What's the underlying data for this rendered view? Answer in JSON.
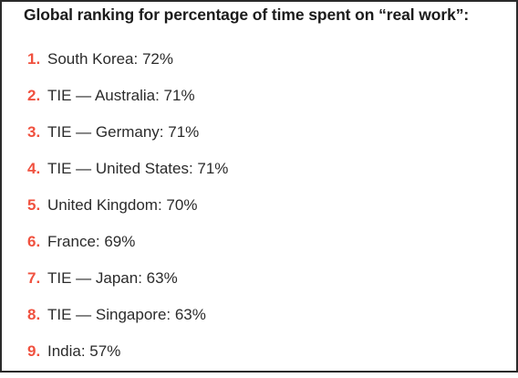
{
  "heading": "Global ranking for percentage of time spent on “real work”:",
  "colors": {
    "rank_number": "#f0513f",
    "text": "#2b2b2b",
    "heading": "#1b1b1b",
    "background": "#ffffff",
    "border": "#2a2a2a"
  },
  "rankings": [
    {
      "number": "1.",
      "text": "South Korea: 72%"
    },
    {
      "number": "2.",
      "text": "TIE — Australia: 71%"
    },
    {
      "number": "3.",
      "text": "TIE — Germany: 71%"
    },
    {
      "number": "4.",
      "text": "TIE — United States: 71%"
    },
    {
      "number": "5.",
      "text": "United Kingdom: 70%"
    },
    {
      "number": "6.",
      "text": "France: 69%"
    },
    {
      "number": "7.",
      "text": "TIE — Japan: 63%"
    },
    {
      "number": "8.",
      "text": "TIE — Singapore: 63%"
    },
    {
      "number": "9.",
      "text": "India: 57%"
    }
  ]
}
